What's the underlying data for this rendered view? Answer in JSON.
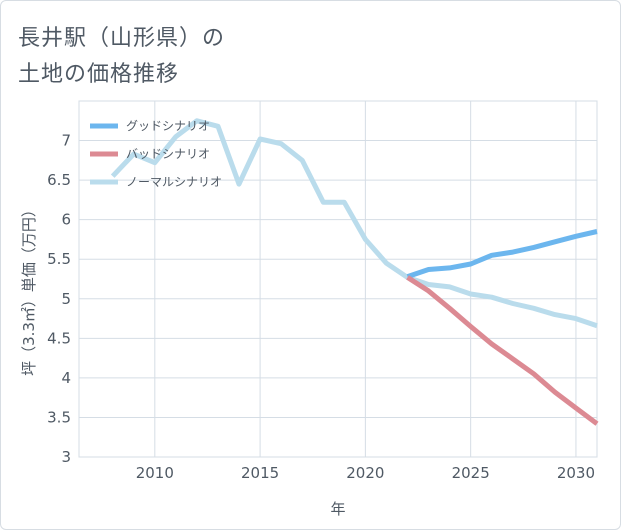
{
  "title_line1": "長井駅（山形県）の",
  "title_line2": "土地の価格推移",
  "chart_data": {
    "type": "line",
    "xlabel": "年",
    "ylabel": "坪（3.3㎡）単価（万円）",
    "xlim": [
      2006.4,
      2031
    ],
    "ylim": [
      3,
      7.5
    ],
    "x_ticks": [
      2010,
      2015,
      2020,
      2025,
      2030
    ],
    "y_ticks": [
      3,
      3.5,
      4,
      4.5,
      5,
      5.5,
      6,
      6.5,
      7
    ],
    "y_tick_labels": [
      "3",
      "3.5",
      "4",
      "4.5",
      "5",
      "5.5",
      "6",
      "6.5",
      "7"
    ],
    "grid": true,
    "legend_position": "top-left",
    "series": [
      {
        "name": "グッドシナリオ",
        "color": "#6cb6ee",
        "x": [
          2022,
          2023,
          2024,
          2025,
          2026,
          2027,
          2028,
          2029,
          2030,
          2031
        ],
        "y": [
          5.28,
          5.37,
          5.39,
          5.44,
          5.55,
          5.59,
          5.65,
          5.72,
          5.79,
          5.85
        ]
      },
      {
        "name": "バッドシナリオ",
        "color": "#dc8a93",
        "x": [
          2022,
          2023,
          2024,
          2025,
          2026,
          2027,
          2028,
          2029,
          2030,
          2031
        ],
        "y": [
          5.27,
          5.1,
          4.88,
          4.65,
          4.43,
          4.24,
          4.05,
          3.82,
          3.62,
          3.42
        ]
      },
      {
        "name": "ノーマルシナリオ",
        "color": "#badcec",
        "x": [
          2008,
          2009,
          2010,
          2011,
          2012,
          2013,
          2014,
          2015,
          2016,
          2017,
          2018,
          2019,
          2020,
          2021,
          2022,
          2023,
          2024,
          2025,
          2026,
          2027,
          2028,
          2029,
          2030,
          2031
        ],
        "y": [
          6.55,
          6.83,
          6.72,
          7.05,
          7.25,
          7.18,
          6.45,
          7.02,
          6.96,
          6.75,
          6.22,
          6.22,
          5.75,
          5.45,
          5.27,
          5.18,
          5.15,
          5.06,
          5.02,
          4.94,
          4.88,
          4.8,
          4.75,
          4.66
        ]
      }
    ]
  }
}
